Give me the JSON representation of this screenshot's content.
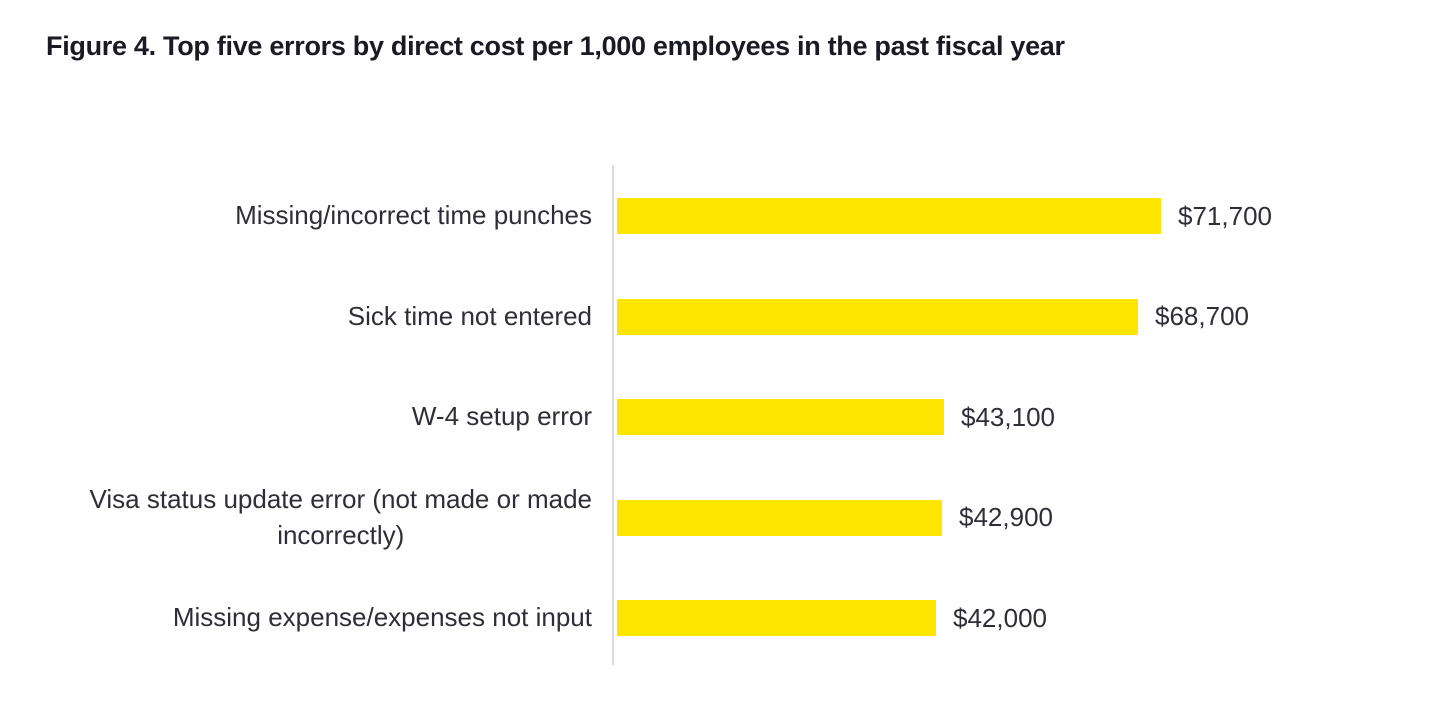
{
  "figure": {
    "title": "Figure 4. Top five errors by direct cost per 1,000 employees in the past fiscal year"
  },
  "colors": {
    "bar": "#FFE600",
    "label_text": "#2E2E38",
    "title_text": "#1A1A24",
    "axis_line": "#D9D9D9",
    "background": "#FFFFFF"
  },
  "chart_data": {
    "type": "bar",
    "orientation": "horizontal",
    "title": "Figure 4. Top five errors by direct cost per 1,000 employees in the past fiscal year",
    "categories": [
      "Missing/incorrect time punches",
      "Sick time not entered",
      "W-4 setup error",
      "Visa status update error (not made or made\nincorrectly)",
      "Missing expense/expenses not input"
    ],
    "values": [
      71700,
      68700,
      43100,
      42900,
      42000
    ],
    "value_labels": [
      "$71,700",
      "$68,700",
      "$43,100",
      "$42,900",
      "$42,000"
    ],
    "xlabel": "",
    "ylabel": "",
    "xlim": [
      0,
      75000
    ],
    "grid": false,
    "legend": false,
    "data_labels_position": "end-of-bar"
  }
}
